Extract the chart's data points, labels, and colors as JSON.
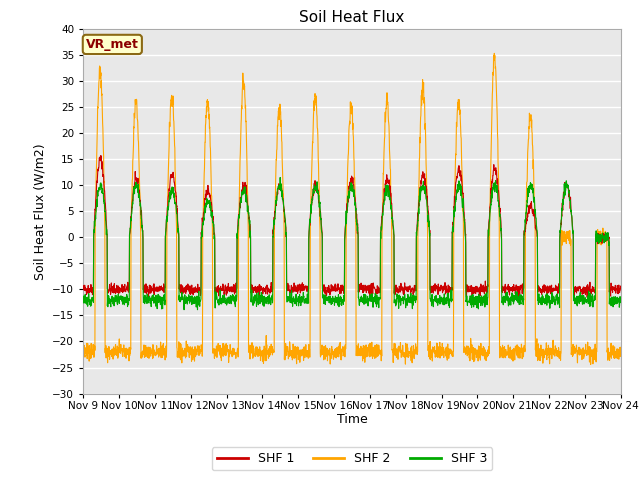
{
  "title": "Soil Heat Flux",
  "ylabel": "Soil Heat Flux (W/m2)",
  "xlabel": "Time",
  "ylim": [
    -30,
    40
  ],
  "background_color": "#ffffff",
  "plot_bg_color": "#e8e8e8",
  "grid_color": "#ffffff",
  "shf1_color": "#cc0000",
  "shf2_color": "#ffa500",
  "shf3_color": "#00aa00",
  "legend_label1": "SHF 1",
  "legend_label2": "SHF 2",
  "legend_label3": "SHF 3",
  "annotation": "VR_met",
  "n_days": 15,
  "points_per_day": 144,
  "yticks": [
    -30,
    -25,
    -20,
    -15,
    -10,
    -5,
    0,
    5,
    10,
    15,
    20,
    25,
    30,
    35,
    40
  ],
  "day_amps_shf1": [
    15,
    11,
    12,
    9,
    10,
    10,
    10,
    11,
    11,
    12,
    13,
    13,
    6,
    10,
    0
  ],
  "day_amps_shf2": [
    32,
    26,
    27,
    26,
    30,
    25,
    27,
    25,
    26,
    29,
    26,
    35,
    23,
    0,
    0
  ],
  "day_amps_shf3": [
    10,
    10,
    9,
    7,
    9,
    10,
    10,
    10,
    9,
    10,
    10,
    10,
    10,
    10,
    0
  ],
  "shf1_night": -10,
  "shf2_night": -22,
  "shf3_night": -12
}
